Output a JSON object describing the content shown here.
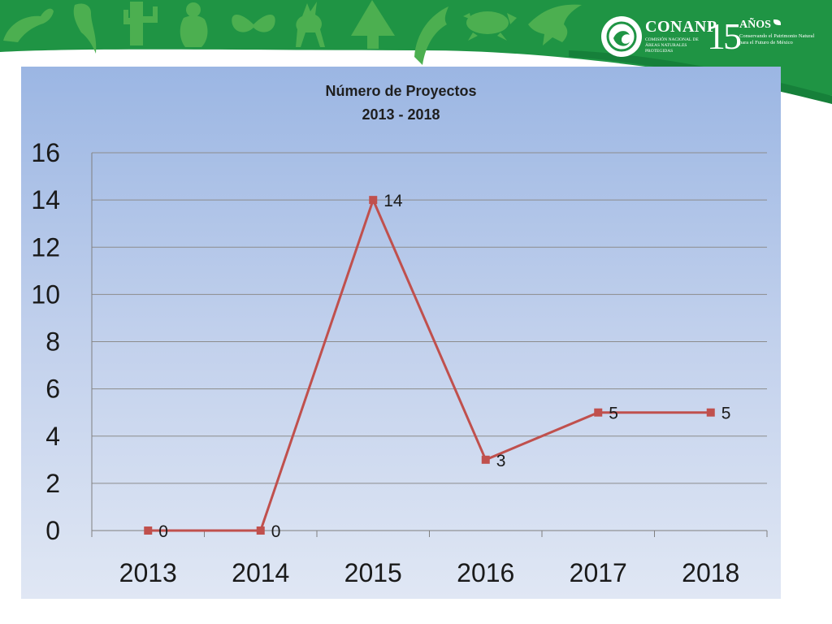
{
  "header": {
    "org_name": "CONANP",
    "org_fullname": "Comisión Nacional de Áreas Naturales Protegidas",
    "anniversary_number": "15",
    "anniversary_word": "AÑOS",
    "anniversary_tagline": "Conservando el Patrimonio Natural para el Futuro de México",
    "colors": {
      "banner": "#1f9444",
      "banner_dark": "#16803a",
      "silhouettes": "#4caf50"
    },
    "icons": [
      "jaguar-icon",
      "parrot-icon",
      "cactus-icon",
      "monkey-icon",
      "butterfly-icon",
      "deer-icon",
      "tree-icon",
      "dolphin-icon",
      "turtle-icon",
      "eagle-icon",
      "conanp-emblem-icon"
    ]
  },
  "chart_data": {
    "type": "line",
    "title_lines": [
      "Número de Proyectos",
      "2013 - 2018"
    ],
    "categories": [
      "2013",
      "2014",
      "2015",
      "2016",
      "2017",
      "2018"
    ],
    "series": [
      {
        "values": [
          0,
          0,
          14,
          3,
          5,
          5
        ],
        "color": "#c0504d"
      }
    ],
    "data_labels": [
      "0",
      "0",
      "14",
      "3",
      "5",
      "5"
    ],
    "y_ticks": [
      "0",
      "2",
      "4",
      "6",
      "8",
      "10",
      "12",
      "14",
      "16"
    ],
    "ylim": [
      0,
      16
    ],
    "y_step": 2,
    "grid": true,
    "legend": "none"
  }
}
